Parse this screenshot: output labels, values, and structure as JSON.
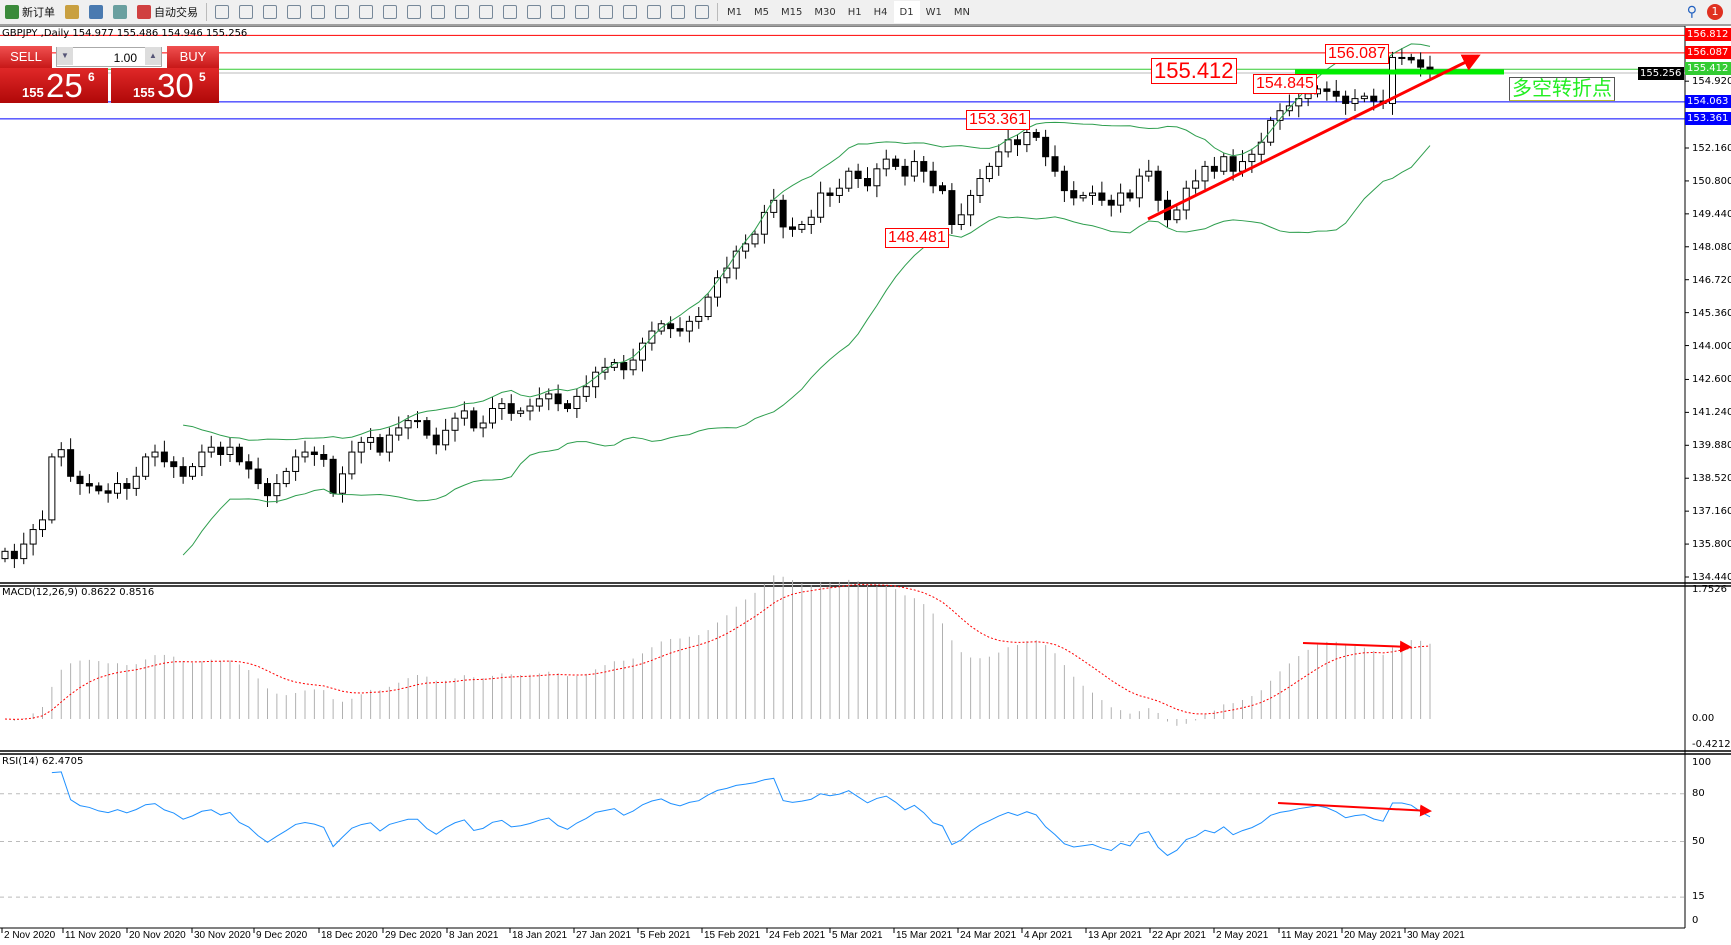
{
  "toolbar": {
    "items": [
      {
        "name": "new-order",
        "label": "新订单",
        "color": "#3a8a3a"
      },
      {
        "name": "metaeditor",
        "label": "",
        "color": "#c9a040"
      },
      {
        "name": "navigator",
        "label": "",
        "color": "#4a7ab0"
      },
      {
        "name": "signals",
        "label": "",
        "color": "#6aa0a0"
      },
      {
        "name": "auto-trading",
        "label": "自动交易",
        "color": "#d04040"
      }
    ],
    "tools": [
      "bar-chart",
      "candlesticks",
      "line-chart",
      "zoom-in",
      "zoom-out",
      "tile-windows",
      "auto-scroll",
      "chart-shift",
      "indicators",
      "periods",
      "templates",
      "cursor",
      "crosshair",
      "vertical-line",
      "horizontal-line",
      "trendline",
      "equidistant-channel",
      "fibonacci",
      "text",
      "text-label",
      "arrows"
    ],
    "timeframes": [
      "M1",
      "M5",
      "M15",
      "M30",
      "H1",
      "H4",
      "D1",
      "W1",
      "MN"
    ],
    "active_timeframe": "D1",
    "notifications": "1"
  },
  "chart": {
    "header": "GBPJPY ,Daily  154.977 155.486 154.946 155.256",
    "trade": {
      "sell": "SELL",
      "buy": "BUY",
      "lot": "1.00",
      "sell_prefix": "155",
      "sell_big": "25",
      "sell_sup": "6",
      "buy_prefix": "155",
      "buy_big": "30",
      "buy_sup": "5"
    },
    "annotations": {
      "a1": "155.412",
      "a2": "156.087",
      "a3": "154.845",
      "a4": "153.361",
      "a5": "148.481",
      "turn": "多空转折点"
    },
    "hlines": [
      {
        "price": 156.812,
        "label": "156.812",
        "color": "#ff0000"
      },
      {
        "price": 156.087,
        "label": "156.087",
        "color": "#ff0000"
      },
      {
        "price": 155.412,
        "label": "155.412",
        "color": "#33cc33"
      },
      {
        "price": 155.256,
        "label": "155.256",
        "color": "#000000"
      },
      {
        "price": 154.063,
        "label": "154.063",
        "color": "#0000ff"
      },
      {
        "price": 153.361,
        "label": "153.361",
        "color": "#0000ff"
      }
    ],
    "price_ticks": [
      "154.920",
      "152.160",
      "150.800",
      "149.440",
      "148.080",
      "146.720",
      "145.360",
      "144.000",
      "142.600",
      "141.240",
      "139.880",
      "138.520",
      "137.160",
      "135.800",
      "134.440"
    ],
    "macd_label": "MACD(12,26,9) 0.8622 0.8516",
    "macd_ticks": [
      "1.7526",
      "0.00",
      "-0.4212"
    ],
    "rsi_label": "RSI(14) 62.4705",
    "rsi_ticks": [
      "100",
      "80",
      "50",
      "15",
      "0"
    ],
    "dates": [
      "2 Nov 2020",
      "11 Nov 2020",
      "20 Nov 2020",
      "30 Nov 2020",
      "9 Dec 2020",
      "18 Dec 2020",
      "29 Dec 2020",
      "8 Jan 2021",
      "18 Jan 2021",
      "27 Jan 2021",
      "5 Feb 2021",
      "15 Feb 2021",
      "24 Feb 2021",
      "5 Mar 2021",
      "15 Mar 2021",
      "24 Mar 2021",
      "4 Apr 2021",
      "13 Apr 2021",
      "22 Apr 2021",
      "2 May 2021",
      "11 May 2021",
      "20 May 2021",
      "30 May 2021"
    ],
    "colors": {
      "bands": "#2e9e4e",
      "macd_signal": "#ff0000",
      "macd_hist": "#b0b0b0",
      "rsi": "#1e90ff",
      "arrow": "#ff0000"
    }
  },
  "chart_data": {
    "type": "candlestick",
    "symbol": "GBPJPY",
    "timeframe": "Daily",
    "ylim": [
      134.44,
      156.812
    ],
    "closes": [
      135.5,
      135.2,
      135.8,
      136.4,
      136.8,
      139.4,
      139.7,
      138.6,
      138.3,
      138.2,
      138.0,
      137.9,
      138.3,
      138.1,
      138.6,
      139.4,
      139.6,
      139.2,
      139.0,
      138.6,
      139.0,
      139.6,
      139.8,
      139.5,
      139.8,
      139.2,
      138.9,
      138.3,
      137.8,
      138.3,
      138.8,
      139.4,
      139.6,
      139.5,
      139.3,
      137.9,
      138.7,
      139.6,
      140.0,
      140.2,
      139.6,
      140.3,
      140.6,
      140.9,
      140.9,
      140.3,
      139.9,
      140.5,
      141.0,
      141.3,
      140.6,
      140.8,
      141.4,
      141.6,
      141.2,
      141.3,
      141.5,
      141.8,
      142.0,
      141.6,
      141.4,
      141.9,
      142.3,
      142.9,
      143.1,
      143.3,
      143.0,
      143.4,
      144.1,
      144.6,
      144.9,
      144.7,
      144.6,
      145.0,
      145.2,
      146.0,
      146.8,
      147.2,
      147.9,
      148.2,
      148.6,
      149.5,
      150.0,
      148.9,
      148.8,
      149.0,
      149.3,
      150.3,
      150.2,
      150.5,
      151.2,
      150.9,
      150.6,
      151.3,
      151.7,
      151.4,
      151.0,
      151.6,
      151.2,
      150.6,
      150.4,
      149.0,
      149.4,
      150.2,
      150.9,
      151.4,
      152.0,
      152.5,
      152.3,
      152.8,
      152.6,
      151.8,
      151.2,
      150.4,
      150.1,
      150.2,
      150.3,
      150.0,
      149.8,
      150.3,
      150.1,
      151.0,
      151.2,
      150.0,
      149.2,
      149.6,
      150.5,
      150.8,
      151.4,
      151.2,
      151.8,
      151.2,
      151.6,
      151.9,
      152.4,
      153.3,
      153.7,
      153.9,
      154.2,
      154.4,
      154.6,
      154.5,
      154.3,
      154.0,
      154.2,
      154.3,
      154.1,
      154.0,
      155.9,
      155.9,
      155.8,
      155.5,
      155.256
    ]
  }
}
